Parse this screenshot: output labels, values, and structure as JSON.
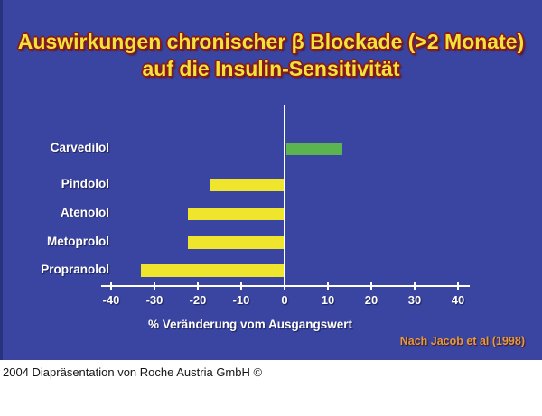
{
  "slide": {
    "title_line1": "Auswirkungen chronischer β Blockade (>2 Monate)",
    "title_line2": "auf die Insulin-Sensitivität",
    "colors": {
      "background": "#3A45A1",
      "title_fill": "#F0E43C",
      "title_outline": "#8A1A1A",
      "axis": "#FFFFFF",
      "source_note": "#E59A3C",
      "bar_yellow": "#F0E52D",
      "bar_green": "#5BB450"
    }
  },
  "chart_data": {
    "type": "bar",
    "orientation": "horizontal",
    "title": "Auswirkungen chronischer β Blockade (>2 Monate) auf die Insulin-Sensitivität",
    "categories": [
      "Carvedilol",
      "Pindolol",
      "Atenolol",
      "Metoprolol",
      "Propranolol"
    ],
    "values": [
      13,
      -17,
      -22,
      -22,
      -33
    ],
    "bar_colors": [
      "#5BB450",
      "#F0E52D",
      "#F0E52D",
      "#F0E52D",
      "#F0E52D"
    ],
    "xlabel": "% Veränderung vom Ausgangswert",
    "ylabel": "",
    "xticks": [
      -40,
      -30,
      -20,
      -10,
      0,
      10,
      20,
      30,
      40
    ],
    "xlim": [
      -45,
      45
    ],
    "grid": false,
    "legend": false,
    "source": "Nach Jacob et al (1998)"
  },
  "footer": {
    "text": "2004 Diapräsentation von Roche Austria GmbH ©"
  }
}
